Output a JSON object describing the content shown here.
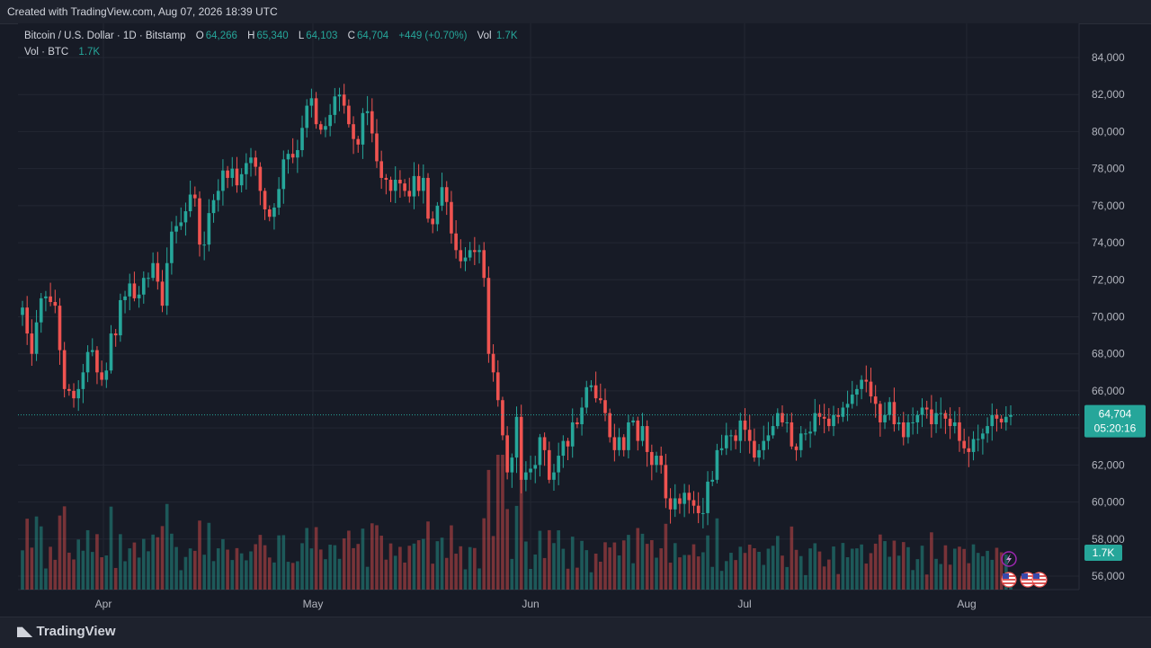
{
  "header": {
    "created_text": "Created with TradingView.com, Aug 07, 2026 18:39 UTC"
  },
  "footer": {
    "logo_text": "TradingView"
  },
  "legend": {
    "symbol": "Bitcoin / U.S. Dollar · 1D · Bitstamp",
    "open_label": "O",
    "open": "64,266",
    "high_label": "H",
    "high": "65,340",
    "low_label": "L",
    "low": "64,103",
    "close_label": "C",
    "close": "64,704",
    "change": "+449 (+0.70%)",
    "vol_label": "Vol",
    "vol": "1.7K",
    "vol_series_label": "Vol · BTC",
    "vol_series_value": "1.7K"
  },
  "price_tag": {
    "price": "64,704",
    "countdown": "05:20:16"
  },
  "volume_tag": "1.7K",
  "colors": {
    "up": "#26a69a",
    "down": "#ef5350",
    "background": "#171b26",
    "grid": "#232733",
    "text": "#b2b5be",
    "tag": "#26a69a"
  },
  "icons": [
    "lightning-icon",
    "us-flag-icon",
    "us-flag-icon",
    "us-flag-icon"
  ],
  "chart_data": {
    "type": "candlestick",
    "price_axis": {
      "ticks": [
        "56,000",
        "58,000",
        "60,000",
        "62,000",
        "64,000",
        "66,000",
        "68,000",
        "70,000",
        "72,000",
        "74,000",
        "76,000",
        "78,000",
        "80,000",
        "82,000",
        "84,000"
      ],
      "range": [
        55000,
        85000
      ]
    },
    "time_axis": [
      "Apr",
      "May",
      "Jun",
      "Jul",
      "Aug"
    ],
    "grid": true,
    "last_price": 64704,
    "closes": [
      70500,
      69100,
      68000,
      69700,
      71000,
      71100,
      70800,
      70600,
      68200,
      66100,
      66000,
      65600,
      66100,
      67000,
      68100,
      68200,
      67000,
      66600,
      67100,
      69100,
      69000,
      70900,
      71100,
      71800,
      71000,
      71200,
      72100,
      72100,
      72900,
      71900,
      70600,
      72900,
      74600,
      74900,
      75100,
      75700,
      76600,
      76400,
      73900,
      73900,
      75600,
      76300,
      76800,
      77900,
      77500,
      78000,
      77100,
      77700,
      78300,
      78600,
      78100,
      76800,
      75800,
      75400,
      75900,
      76900,
      78500,
      78800,
      78600,
      79000,
      80200,
      81400,
      81800,
      80400,
      80100,
      80300,
      80900,
      81900,
      82000,
      81400,
      80400,
      79600,
      79300,
      81000,
      81100,
      79900,
      78400,
      77500,
      77400,
      76800,
      77400,
      77200,
      76800,
      76500,
      77600,
      76800,
      77500,
      75300,
      75000,
      76000,
      77000,
      76200,
      74500,
      73600,
      73000,
      73200,
      73600,
      73500,
      73600,
      72100,
      68000,
      67000,
      65500,
      63600,
      61600,
      62400,
      64600,
      61200,
      61600,
      61800,
      62000,
      63500,
      62800,
      61200,
      61600,
      62500,
      63300,
      63000,
      64300,
      64200,
      65100,
      66200,
      66300,
      65600,
      65500,
      64800,
      63500,
      62800,
      63500,
      62800,
      64300,
      64400,
      63300,
      64100,
      62700,
      62000,
      62500,
      62000,
      60200,
      59600,
      60200,
      59900,
      60500,
      60100,
      59800,
      59400,
      59400,
      61100,
      61200,
      62800,
      62900,
      63600,
      63600,
      63300,
      64400,
      63900,
      63300,
      62400,
      62800,
      63300,
      63600,
      64100,
      64800,
      64300,
      64300,
      63000,
      62800,
      63700,
      63700,
      63800,
      64800,
      64600,
      64500,
      64100,
      64700,
      64600,
      65100,
      65300,
      65800,
      66100,
      66600,
      66500,
      65700,
      65300,
      64300,
      64700,
      65400,
      64200,
      64300,
      63500,
      64300,
      64300,
      64700,
      65100,
      65000,
      64200,
      64800,
      64800,
      64500,
      64100,
      64300,
      63300,
      62900,
      62700,
      63400,
      63400,
      63700,
      64100,
      64700,
      64500,
      64300,
      64600,
      64700
    ]
  }
}
